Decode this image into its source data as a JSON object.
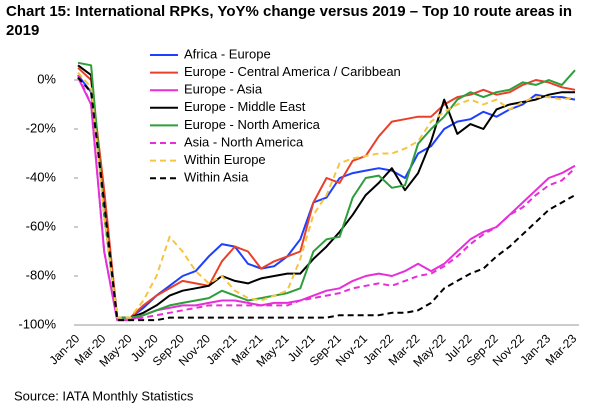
{
  "chart_data": {
    "type": "line",
    "title": "Chart 15: International RPKs, YoY% change versus 2019 – Top 10 route areas in 2019",
    "source": "Source: IATA Monthly Statistics",
    "categories": [
      "Jan-20",
      null,
      "Mar-20",
      null,
      "May-20",
      null,
      "Jul-20",
      null,
      "Sep-20",
      null,
      "Nov-20",
      null,
      "Jan-21",
      null,
      "Mar-21",
      null,
      "May-21",
      null,
      "Jul-21",
      null,
      "Sep-21",
      null,
      "Nov-21",
      null,
      "Jan-22",
      null,
      "Mar-22",
      null,
      "May-22",
      null,
      "Jul-22",
      null,
      "Sep-22",
      null,
      "Nov-22",
      null,
      "Jan-23",
      null,
      "Mar-23"
    ],
    "ylim": [
      -100,
      8
    ],
    "yticks": [
      {
        "value": 0,
        "label": "0%"
      },
      {
        "value": -20,
        "label": "-20%"
      },
      {
        "value": -40,
        "label": "-40%"
      },
      {
        "value": -60,
        "label": "-60%"
      },
      {
        "value": -80,
        "label": "-80%"
      },
      {
        "value": -100,
        "label": "-100%"
      }
    ],
    "series": [
      {
        "name": "Africa - Europe",
        "color": "#1f3fff",
        "dashed": false,
        "values": [
          2,
          -5,
          -50,
          -97,
          -97,
          -93,
          -88,
          -84,
          -80,
          -78,
          -72,
          -67,
          -68,
          -75,
          -77,
          -76,
          -72,
          -65,
          -50,
          -48,
          -40,
          -38,
          -37,
          -36,
          -37,
          -40,
          -30,
          -27,
          -20,
          -17,
          -16,
          -13,
          -15,
          -12,
          -10,
          -6,
          -7,
          -7,
          -8
        ]
      },
      {
        "name": "Europe - Central America / Caribbean",
        "color": "#e8402a",
        "dashed": false,
        "values": [
          5,
          0,
          -45,
          -97,
          -97,
          -92,
          -88,
          -85,
          -82,
          -83,
          -84,
          -74,
          -68,
          -70,
          -77,
          -74,
          -72,
          -70,
          -50,
          -40,
          -42,
          -33,
          -31,
          -23,
          -17,
          -16,
          -15,
          -15,
          -10,
          -7,
          -6,
          -4,
          -6,
          -5,
          -2,
          0,
          -1,
          -3,
          -4
        ]
      },
      {
        "name": "Europe - Asia",
        "color": "#e62fd8",
        "dashed": false,
        "values": [
          1,
          -10,
          -70,
          -98,
          -98,
          -96,
          -94,
          -93,
          -92,
          -92,
          -91,
          -90,
          -90,
          -91,
          -92,
          -91,
          -91,
          -90,
          -88,
          -86,
          -85,
          -82,
          -80,
          -79,
          -80,
          -78,
          -75,
          -78,
          -75,
          -70,
          -65,
          -62,
          -60,
          -55,
          -50,
          -45,
          -40,
          -38,
          -35
        ]
      },
      {
        "name": "Europe - Middle East",
        "color": "#000000",
        "dashed": false,
        "values": [
          6,
          2,
          -55,
          -97,
          -97,
          -95,
          -92,
          -88,
          -86,
          -85,
          -84,
          -80,
          -82,
          -83,
          -81,
          -80,
          -79,
          -79,
          -73,
          -68,
          -62,
          -55,
          -47,
          -42,
          -36,
          -45,
          -38,
          -25,
          -8,
          -22,
          -18,
          -20,
          -12,
          -10,
          -9,
          -8,
          -6,
          -5,
          -5
        ]
      },
      {
        "name": "Europe - North America",
        "color": "#2e9e3a",
        "dashed": false,
        "values": [
          7,
          6,
          -55,
          -97,
          -97,
          -96,
          -94,
          -92,
          -91,
          -90,
          -89,
          -86,
          -88,
          -90,
          -89,
          -88,
          -87,
          -85,
          -70,
          -65,
          -64,
          -48,
          -40,
          -39,
          -44,
          -43,
          -26,
          -20,
          -15,
          -8,
          -5,
          -7,
          -5,
          -4,
          -1,
          -2,
          0,
          -2,
          4
        ]
      },
      {
        "name": "Asia - North America",
        "color": "#e62fd8",
        "dashed": true,
        "values": [
          2,
          -10,
          -70,
          -98,
          -98,
          -97,
          -96,
          -95,
          -94,
          -93,
          -92,
          -92,
          -92,
          -92,
          -92,
          -92,
          -92,
          -90,
          -89,
          -88,
          -87,
          -85,
          -84,
          -83,
          -84,
          -82,
          -80,
          -79,
          -76,
          -72,
          -67,
          -63,
          -60,
          -55,
          -52,
          -47,
          -43,
          -41,
          -36
        ]
      },
      {
        "name": "Within Europe",
        "color": "#f5c542",
        "dashed": true,
        "values": [
          3,
          -3,
          -55,
          -97,
          -97,
          -90,
          -80,
          -64,
          -70,
          -78,
          -83,
          -80,
          -86,
          -89,
          -90,
          -88,
          -86,
          -73,
          -55,
          -47,
          -34,
          -32,
          -31,
          -30,
          -30,
          -28,
          -25,
          -17,
          -13,
          -10,
          -8,
          -10,
          -8,
          -12,
          -9,
          -7,
          -7,
          -8,
          -7
        ]
      },
      {
        "name": "Within Asia",
        "color": "#000000",
        "dashed": true,
        "values": [
          1,
          -5,
          -50,
          -98,
          -98,
          -98,
          -98,
          -97,
          -97,
          -97,
          -97,
          -97,
          -97,
          -97,
          -97,
          -97,
          -97,
          -97,
          -97,
          -97,
          -96,
          -96,
          -96,
          -96,
          -95,
          -95,
          -94,
          -91,
          -85,
          -82,
          -79,
          -77,
          -72,
          -68,
          -63,
          -58,
          -53,
          -50,
          -47
        ]
      }
    ]
  }
}
